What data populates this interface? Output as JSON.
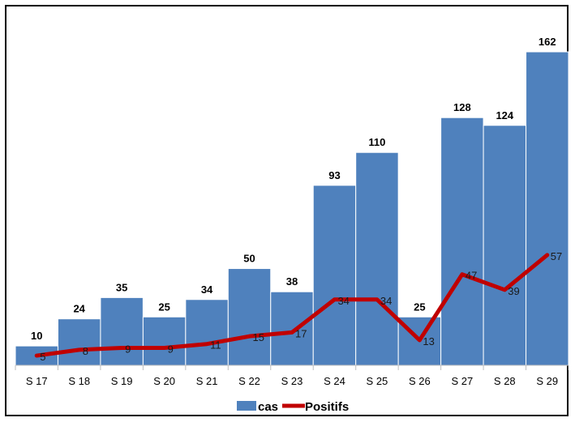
{
  "chart_data": {
    "type": "bar",
    "categories": [
      "S 17",
      "S 18",
      "S 19",
      "S 20",
      "S 21",
      "S 22",
      "S 23",
      "S 24",
      "S 25",
      "S 26",
      "S 27",
      "S 28",
      "S 29"
    ],
    "series": [
      {
        "name": "cas",
        "type": "bar",
        "color": "#4f81bd",
        "values": [
          10,
          24,
          35,
          25,
          34,
          50,
          38,
          93,
          110,
          25,
          128,
          124,
          162
        ]
      },
      {
        "name": "Positifs",
        "type": "line",
        "color": "#c00000",
        "values": [
          5,
          8,
          9,
          9,
          11,
          15,
          17,
          34,
          34,
          13,
          47,
          39,
          57
        ]
      }
    ],
    "ylim": [
      0,
      175
    ],
    "grid": false,
    "legend": "bottom"
  }
}
